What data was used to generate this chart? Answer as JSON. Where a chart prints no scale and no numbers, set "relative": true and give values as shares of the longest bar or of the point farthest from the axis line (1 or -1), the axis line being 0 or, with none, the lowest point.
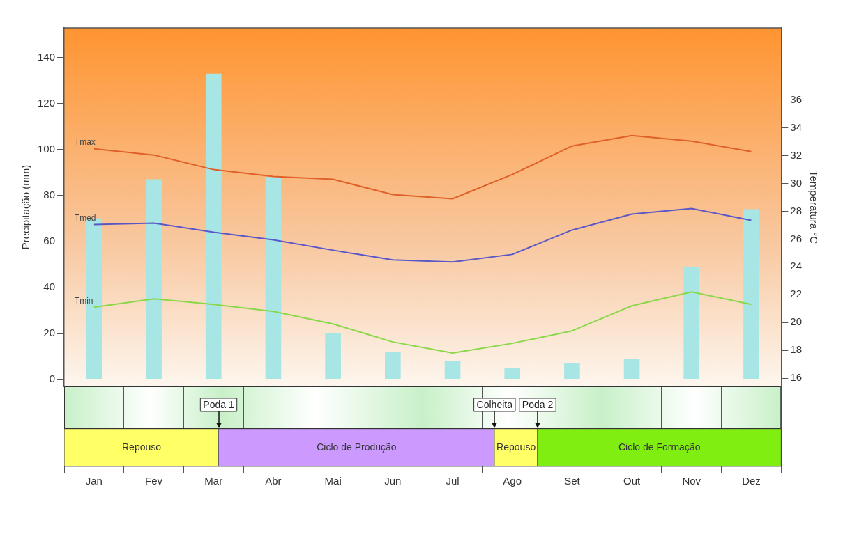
{
  "chart_data": [
    {
      "type": "bar",
      "ylabel": "Precipitação (mm)",
      "y2label": "Temperatura °C",
      "categories": [
        "Jan",
        "Fev",
        "Mar",
        "Abr",
        "Mai",
        "Jun",
        "Jul",
        "Ago",
        "Set",
        "Out",
        "Nov",
        "Dez"
      ],
      "ylim": [
        -3,
        153
      ],
      "yticks": [
        0,
        20,
        40,
        60,
        80,
        100,
        120,
        140
      ],
      "y2lim": [
        15.4,
        41.2
      ],
      "y2ticks": [
        16,
        18,
        20,
        22,
        24,
        26,
        28,
        30,
        32,
        34,
        36
      ],
      "series": [
        {
          "color": "#a8e6e6",
          "values": [
            70,
            87,
            133,
            88,
            20,
            12,
            8,
            5,
            7,
            9,
            49,
            74
          ]
        },
        {
          "type": "line",
          "name": "Tmáx",
          "axis": "y2",
          "color": "#e0602a",
          "values": [
            32.5,
            32.05,
            31.0,
            30.5,
            30.3,
            29.2,
            28.9,
            30.65,
            32.7,
            33.45,
            33.05,
            32.3
          ]
        },
        {
          "type": "line",
          "name": "Tmed",
          "axis": "y2",
          "color": "#5a58c8",
          "values": [
            27.05,
            27.15,
            26.5,
            25.95,
            25.2,
            24.5,
            24.35,
            24.9,
            26.65,
            27.8,
            28.2,
            27.35
          ]
        },
        {
          "type": "line",
          "name": "Tmin",
          "axis": "y2",
          "color": "#8ad84a",
          "values": [
            21.1,
            21.7,
            21.3,
            20.8,
            19.9,
            18.6,
            17.8,
            18.5,
            19.4,
            21.2,
            22.2,
            21.3
          ]
        }
      ],
      "legend": false,
      "grid": false
    },
    {
      "type": "bar",
      "orientation": "horizontal",
      "stacked": true,
      "relative": true,
      "categories": [
        null
      ],
      "series": [
        {
          "name": "Repouso",
          "color": "#ffff66",
          "values": [
            0.215
          ]
        },
        {
          "name": "Ciclo de Produção",
          "color": "#cc99ff",
          "values": [
            0.385
          ]
        },
        {
          "name": "Repouso",
          "color": "#ffff66",
          "values": [
            0.06
          ]
        },
        {
          "name": "Ciclo de Formação",
          "color": "#80ee10",
          "values": [
            0.34
          ]
        }
      ],
      "annotations": [
        "Poda 1",
        "Colheita",
        "Poda 2"
      ],
      "legend": false,
      "grid": false
    }
  ]
}
